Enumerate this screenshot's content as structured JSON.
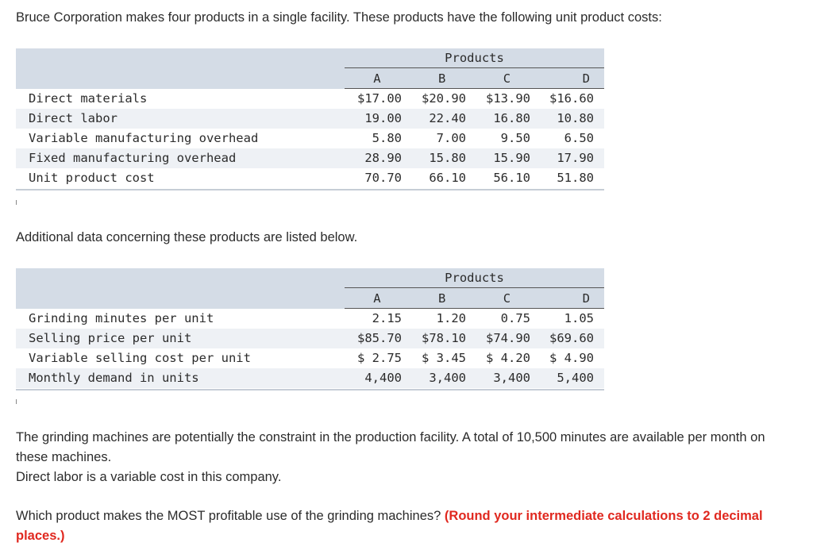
{
  "intro": "Bruce Corporation makes four products in a single facility. These products have the following unit product costs:",
  "table1": {
    "group_header": "Products",
    "columns": [
      "A",
      "B",
      "C",
      "D"
    ],
    "rows": [
      {
        "label": "Direct materials",
        "values": [
          "$17.00",
          "$20.90",
          "$13.90",
          "$16.60"
        ]
      },
      {
        "label": "Direct labor",
        "values": [
          "19.00",
          "22.40",
          "16.80",
          "10.80"
        ]
      },
      {
        "label": "Variable manufacturing overhead",
        "values": [
          "5.80",
          "7.00",
          "9.50",
          "6.50"
        ]
      },
      {
        "label": "Fixed manufacturing overhead",
        "values": [
          "28.90",
          "15.80",
          "15.90",
          "17.90"
        ]
      },
      {
        "label": "Unit product cost",
        "values": [
          "70.70",
          "66.10",
          "56.10",
          "51.80"
        ]
      }
    ]
  },
  "additional": "Additional data concerning these products are listed below.",
  "table2": {
    "group_header": "Products",
    "columns": [
      "A",
      "B",
      "C",
      "D"
    ],
    "rows": [
      {
        "label": "Grinding minutes per unit",
        "values": [
          "2.15",
          "1.20",
          "0.75",
          "1.05"
        ]
      },
      {
        "label": "Selling price per unit",
        "values": [
          "$85.70",
          "$78.10",
          "$74.90",
          "$69.60"
        ]
      },
      {
        "label": "Variable selling cost per unit",
        "values": [
          "$ 2.75",
          "$ 3.45",
          "$ 4.20",
          "$ 4.90"
        ]
      },
      {
        "label": "Monthly demand in units",
        "values": [
          "4,400",
          "3,400",
          "3,400",
          "5,400"
        ]
      }
    ]
  },
  "constraint_text_1": "The grinding machines are potentially the constraint in the production facility. A total of 10,500 minutes are available per month on these machines.",
  "constraint_text_2": "Direct labor is a variable cost in this company.",
  "question": "Which product makes the MOST profitable use of the grinding machines?",
  "instruction": "(Round your intermediate calculations to 2 decimal places.)"
}
